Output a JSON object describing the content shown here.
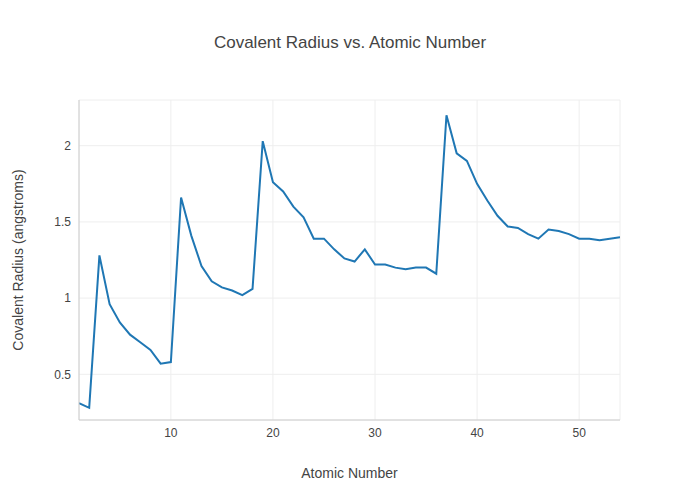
{
  "chart_data": {
    "type": "line",
    "title": "Covalent Radius vs. Atomic Number",
    "x_label": "Atomic Number",
    "y_label": "Covalent Radius (angstroms)",
    "x": [
      1,
      2,
      3,
      4,
      5,
      6,
      7,
      8,
      9,
      10,
      11,
      12,
      13,
      14,
      15,
      16,
      17,
      18,
      19,
      20,
      21,
      22,
      23,
      24,
      25,
      26,
      27,
      28,
      29,
      30,
      31,
      32,
      33,
      34,
      35,
      36,
      37,
      38,
      39,
      40,
      41,
      42,
      43,
      44,
      45,
      46,
      47,
      48,
      49,
      50,
      51,
      52,
      53,
      54
    ],
    "values": [
      0.31,
      0.28,
      1.28,
      0.96,
      0.84,
      0.76,
      0.71,
      0.66,
      0.57,
      0.58,
      1.66,
      1.41,
      1.21,
      1.11,
      1.07,
      1.05,
      1.02,
      1.06,
      2.03,
      1.76,
      1.7,
      1.6,
      1.53,
      1.39,
      1.39,
      1.32,
      1.26,
      1.24,
      1.32,
      1.22,
      1.22,
      1.2,
      1.19,
      1.2,
      1.2,
      1.16,
      2.2,
      1.95,
      1.9,
      1.75,
      1.64,
      1.54,
      1.47,
      1.46,
      1.42,
      1.39,
      1.45,
      1.44,
      1.42,
      1.39,
      1.39,
      1.38,
      1.39,
      1.4
    ],
    "color": "#1f77b4",
    "xlim": [
      1,
      54
    ],
    "ylim": [
      0.2,
      2.3
    ],
    "xticks": [
      10,
      20,
      30,
      40,
      50
    ],
    "yticks": [
      0.5,
      1,
      1.5,
      2
    ],
    "grid": true
  }
}
